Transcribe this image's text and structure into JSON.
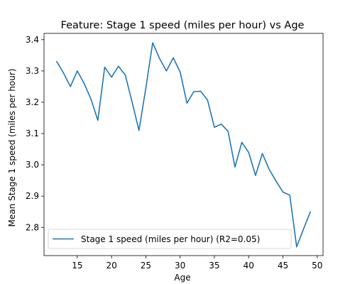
{
  "chart_data": {
    "type": "line",
    "title": "Feature: Stage 1 speed (miles per hour) vs Age",
    "xlabel": "Age",
    "ylabel": "Mean Stage 1 speed (miles per hour)",
    "xlim": [
      10.15,
      50.85
    ],
    "ylim": [
      2.71,
      3.42
    ],
    "xticks": [
      15,
      20,
      25,
      30,
      35,
      40,
      45,
      50
    ],
    "yticks": [
      2.8,
      2.9,
      3.0,
      3.1,
      3.2,
      3.3,
      3.4
    ],
    "ytick_labels": [
      "2.8",
      "2.9",
      "3.0",
      "3.1",
      "3.2",
      "3.3",
      "3.4"
    ],
    "grid": false,
    "legend_position": "lower-left",
    "color": "#1f77b4",
    "series": [
      {
        "name": "Stage 1 speed (miles per hour) (R2=0.05)",
        "x": [
          12,
          13,
          14,
          15,
          16,
          17,
          18,
          19,
          20,
          21,
          22,
          23,
          24,
          25,
          26,
          27,
          28,
          29,
          30,
          31,
          32,
          33,
          34,
          35,
          36,
          37,
          38,
          39,
          40,
          41,
          42,
          43,
          44,
          45,
          46,
          47,
          48,
          49
        ],
        "y": [
          3.33,
          3.293,
          3.25,
          3.3,
          3.26,
          3.21,
          3.142,
          3.312,
          3.28,
          3.315,
          3.287,
          3.2,
          3.11,
          3.245,
          3.39,
          3.34,
          3.3,
          3.342,
          3.297,
          3.197,
          3.234,
          3.235,
          3.207,
          3.12,
          3.13,
          3.107,
          2.993,
          3.072,
          3.04,
          2.966,
          3.036,
          2.985,
          2.948,
          2.913,
          2.903,
          2.738,
          2.795,
          2.85
        ]
      }
    ]
  }
}
